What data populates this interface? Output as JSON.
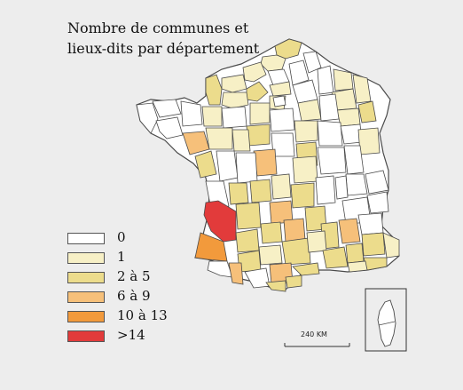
{
  "title": {
    "line1": "Nombre de communes et",
    "line2": "lieux-dits par département"
  },
  "legend": [
    {
      "label": "0",
      "color": "#ffffff"
    },
    {
      "label": "1",
      "color": "#f7f0c6"
    },
    {
      "label": "2 à 5",
      "color": "#ecdc8c"
    },
    {
      "label": "6 à 9",
      "color": "#f6c07a"
    },
    {
      "label": "10 à 13",
      "color": "#f29a3c"
    },
    {
      "label": ">14",
      "color": "#e23b3b"
    }
  ],
  "scale_bar": {
    "label": "240 KM"
  },
  "colors": {
    "background": "#ededed",
    "border": "#4a4a4a"
  }
}
